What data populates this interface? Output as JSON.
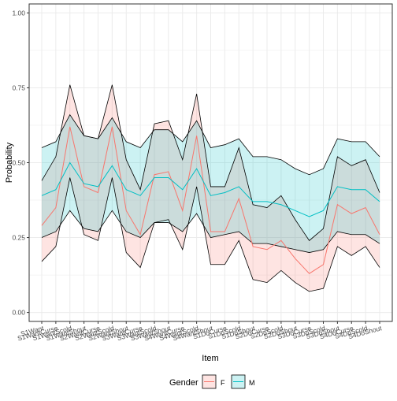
{
  "chart_data": {
    "type": "line",
    "title": "",
    "xlabel": "Item",
    "ylabel": "Probability",
    "ylim": [
      -0.03,
      1.03
    ],
    "y_ticks": [
      0.0,
      0.25,
      0.5,
      0.75,
      1.0
    ],
    "y_tick_labels": [
      "0.00",
      "0.25",
      "0.50",
      "0.75",
      "1.00"
    ],
    "grid": true,
    "legend_position": "bottom",
    "legend_title": "Gender",
    "colors": {
      "F": "#F8766D",
      "M": "#00BFC4"
    },
    "categories": [
      "S1Want",
      "S1WantCurse",
      "S1WantScold",
      "S1WantShout",
      "S2WantCurse",
      "S2WantScold",
      "S2WantShout",
      "S3WantCurse",
      "S3WantScold",
      "S3WantShout",
      "S4WantCurse",
      "S4WantScold",
      "S4WantShout",
      "S1DoCurse",
      "S1DoScold",
      "S1DoShout",
      "S2DoCurse",
      "S2DoScold",
      "S2DoShout",
      "S3DoCurse",
      "S3DoScold",
      "S3DoShout",
      "S4DoCurse",
      "S4DoScold",
      "S4DoShout"
    ],
    "series": [
      {
        "name": "F",
        "values": [
          0.29,
          0.35,
          0.62,
          0.42,
          0.4,
          0.62,
          0.34,
          0.26,
          0.46,
          0.47,
          0.34,
          0.59,
          0.27,
          0.27,
          0.38,
          0.22,
          0.21,
          0.24,
          0.18,
          0.13,
          0.16,
          0.36,
          0.33,
          0.35,
          0.26
        ],
        "lower": [
          0.17,
          0.22,
          0.45,
          0.26,
          0.24,
          0.45,
          0.2,
          0.15,
          0.3,
          0.31,
          0.21,
          0.42,
          0.16,
          0.16,
          0.24,
          0.11,
          0.1,
          0.14,
          0.1,
          0.07,
          0.08,
          0.22,
          0.19,
          0.22,
          0.15
        ],
        "upper": [
          0.44,
          0.52,
          0.76,
          0.59,
          0.58,
          0.76,
          0.51,
          0.41,
          0.63,
          0.64,
          0.51,
          0.73,
          0.42,
          0.42,
          0.55,
          0.36,
          0.35,
          0.39,
          0.31,
          0.24,
          0.28,
          0.52,
          0.49,
          0.51,
          0.4
        ]
      },
      {
        "name": "M",
        "values": [
          0.39,
          0.41,
          0.5,
          0.43,
          0.42,
          0.49,
          0.41,
          0.39,
          0.45,
          0.45,
          0.41,
          0.48,
          0.39,
          0.4,
          0.42,
          0.37,
          0.37,
          0.36,
          0.34,
          0.32,
          0.34,
          0.42,
          0.41,
          0.41,
          0.37
        ],
        "lower": [
          0.25,
          0.27,
          0.34,
          0.28,
          0.27,
          0.34,
          0.27,
          0.25,
          0.3,
          0.3,
          0.27,
          0.33,
          0.25,
          0.26,
          0.27,
          0.23,
          0.23,
          0.22,
          0.21,
          0.2,
          0.21,
          0.27,
          0.26,
          0.26,
          0.23
        ],
        "upper": [
          0.55,
          0.57,
          0.66,
          0.59,
          0.58,
          0.65,
          0.57,
          0.55,
          0.61,
          0.61,
          0.57,
          0.64,
          0.55,
          0.56,
          0.58,
          0.52,
          0.52,
          0.51,
          0.48,
          0.46,
          0.48,
          0.58,
          0.57,
          0.57,
          0.52
        ]
      }
    ]
  }
}
